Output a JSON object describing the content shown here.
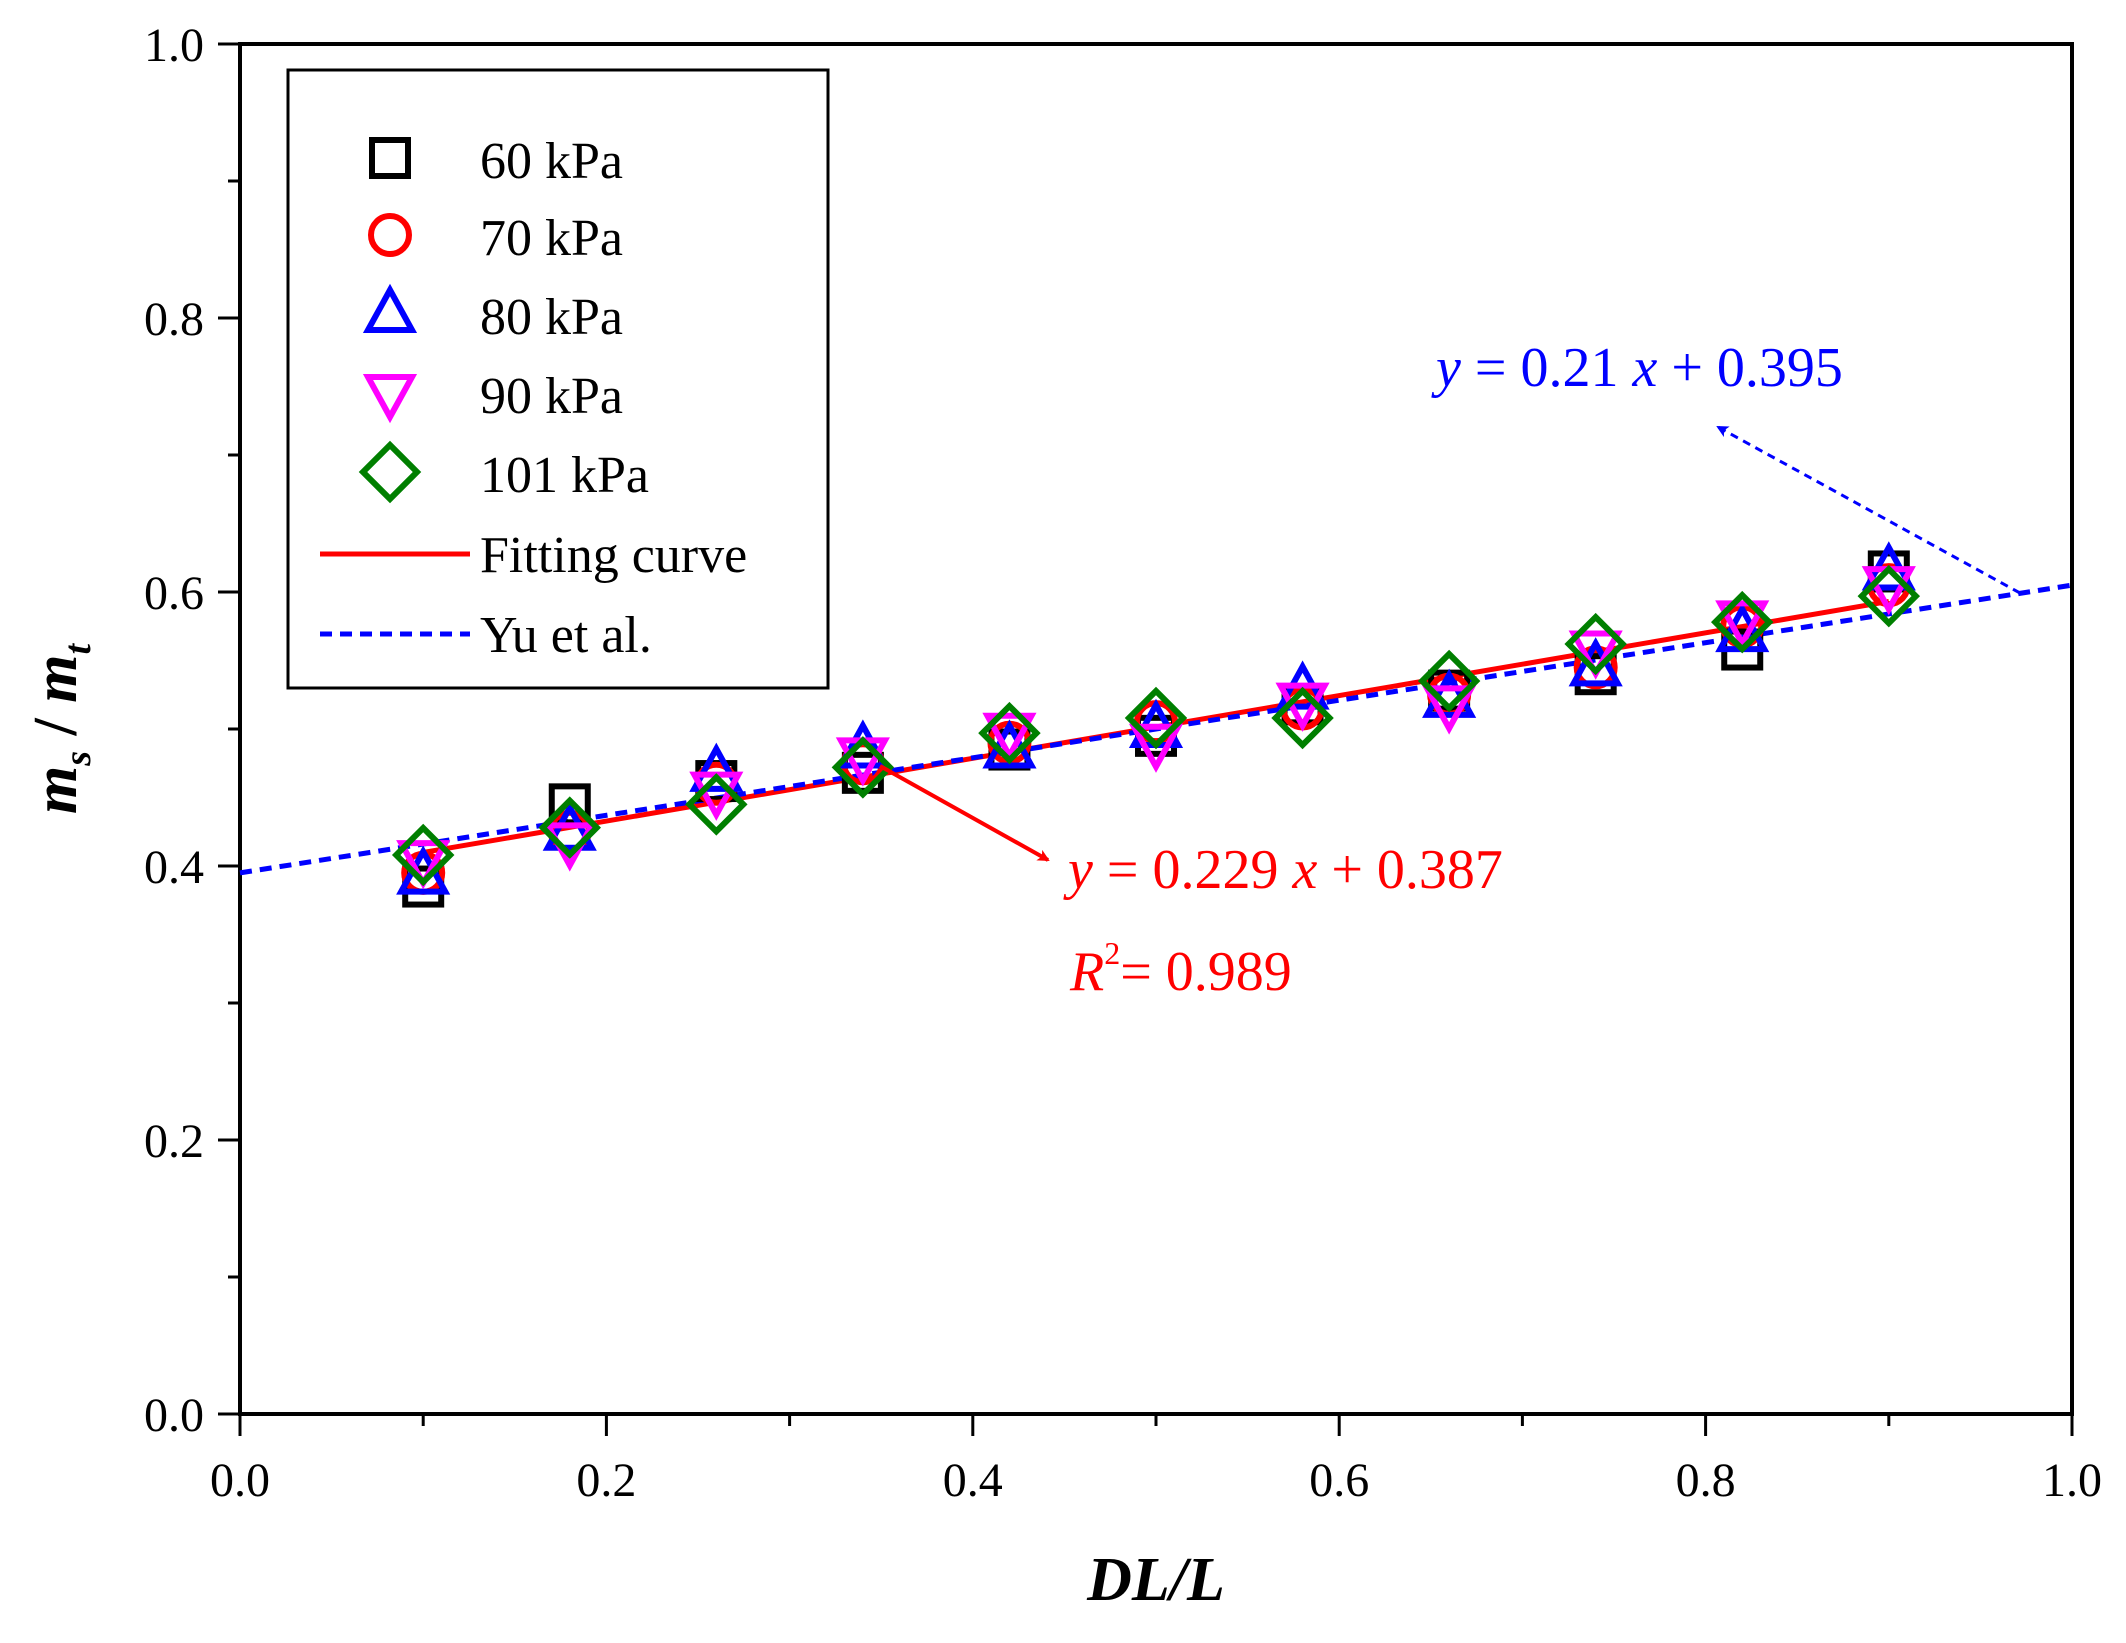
{
  "chart_data": {
    "type": "scatter",
    "xlabel": "DL/L",
    "ylabel_parts": [
      "m",
      "s",
      "/",
      "m",
      "t"
    ],
    "xlim": [
      0.0,
      1.0
    ],
    "ylim": [
      0.0,
      1.0
    ],
    "xticks": [
      0.0,
      0.2,
      0.4,
      0.6,
      0.8,
      1.0
    ],
    "xtick_labels": [
      "0.0",
      "0.2",
      "0.4",
      "0.6",
      "0.8",
      "1.0"
    ],
    "yticks": [
      0.0,
      0.2,
      0.4,
      0.6,
      0.8,
      1.0
    ],
    "ytick_labels": [
      "0.0",
      "0.2",
      "0.4",
      "0.6",
      "0.8",
      "1.0"
    ],
    "grid": false,
    "legend_position": "top-left",
    "x": [
      0.1,
      0.18,
      0.26,
      0.34,
      0.42,
      0.5,
      0.58,
      0.66,
      0.74,
      0.82,
      0.9
    ],
    "series": [
      {
        "name": "60 kPa",
        "marker": "square",
        "color": "#000000",
        "values": [
          0.385,
          0.445,
          0.462,
          0.468,
          0.485,
          0.495,
          0.518,
          0.528,
          0.54,
          0.558,
          0.615
        ]
      },
      {
        "name": "70 kPa",
        "marker": "circle",
        "color": "#ff0000",
        "values": [
          0.395,
          0.425,
          0.46,
          0.475,
          0.49,
          0.505,
          0.515,
          0.525,
          0.545,
          0.575,
          0.605
        ]
      },
      {
        "name": "80 kPa",
        "marker": "triangle-up",
        "color": "#0000ff",
        "values": [
          0.393,
          0.425,
          0.468,
          0.485,
          0.485,
          0.5,
          0.528,
          0.522,
          0.545,
          0.57,
          0.615
        ]
      },
      {
        "name": "90 kPa",
        "marker": "triangle-down",
        "color": "#ff00ff",
        "values": [
          0.405,
          0.418,
          0.455,
          0.48,
          0.498,
          0.49,
          0.52,
          0.518,
          0.558,
          0.58,
          0.605
        ]
      },
      {
        "name": "101 kPa",
        "marker": "diamond",
        "color": "#007f00",
        "values": [
          0.408,
          0.428,
          0.445,
          0.472,
          0.497,
          0.508,
          0.508,
          0.535,
          0.562,
          0.578,
          0.597
        ]
      }
    ],
    "lines": [
      {
        "name": "Fitting curve",
        "color": "#ff0000",
        "style": "solid",
        "slope": 0.229,
        "intercept": 0.387,
        "x_range": [
          0.1,
          0.9
        ]
      },
      {
        "name": "Yu et al.",
        "color": "#0000ff",
        "style": "dashed",
        "slope": 0.21,
        "intercept": 0.395,
        "x_range": [
          0.0,
          1.0
        ]
      }
    ],
    "annotations": {
      "red_equation": {
        "var_y": "y",
        "mid": " = 0.229 ",
        "var_x": "x",
        "tail": " + 0.387",
        "color": "#ff0000"
      },
      "red_r2": {
        "var": "R",
        "sup": "2",
        "tail": "= 0.989",
        "color": "#ff0000"
      },
      "blue_equation": {
        "var_y": "y",
        "mid": " = 0.21 ",
        "var_x": "x",
        "tail": " + 0.395",
        "color": "#0000ff"
      }
    }
  }
}
